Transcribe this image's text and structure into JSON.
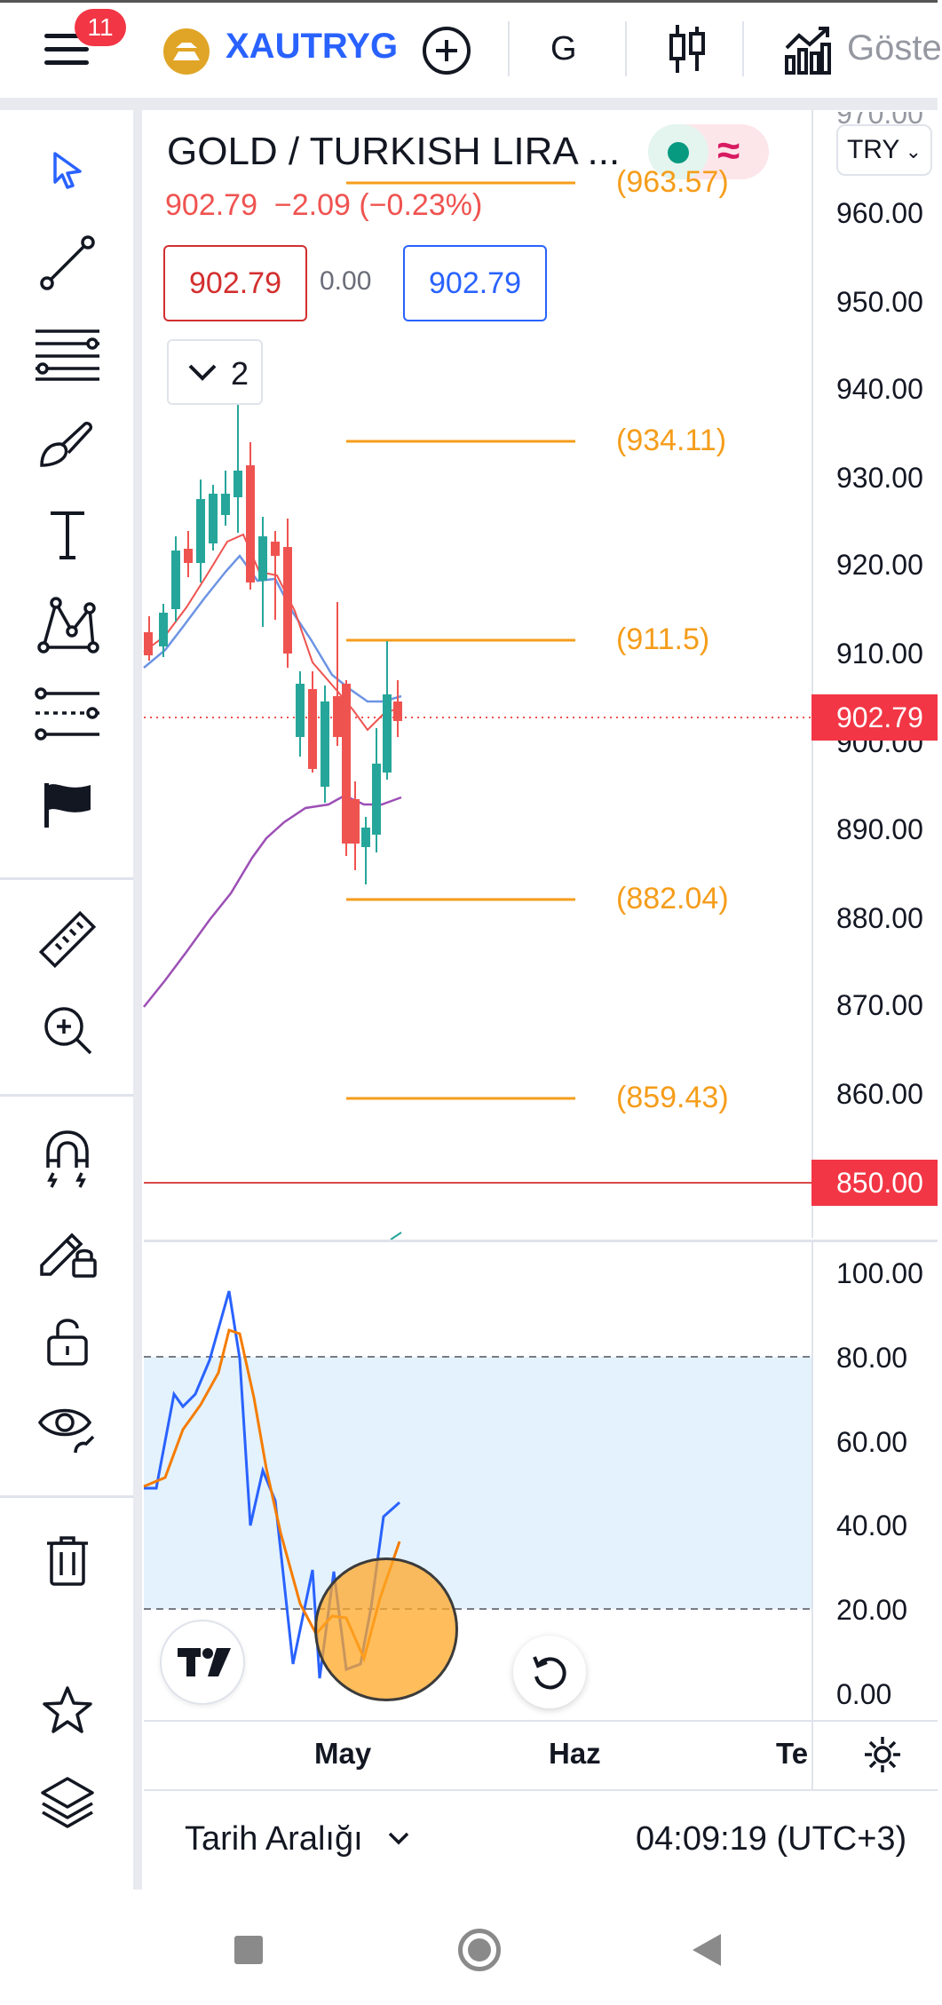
{
  "header": {
    "notification_count": "11",
    "symbol": "XAUTRYG",
    "interval": "G",
    "indicators_label": "Göste"
  },
  "legend": {
    "title": "GOLD / TURKISH LIRA ...",
    "last_price": "902.79",
    "change": "−2.09 (−0.23%)",
    "sell_price": "902.79",
    "spread": "0.00",
    "buy_price": "902.79",
    "collapsed_indicators": "2",
    "live_symbol": "≈"
  },
  "price_scale": {
    "currency": "TRY",
    "ticks": [
      "970.00",
      "960.00",
      "950.00",
      "940.00",
      "930.00",
      "920.00",
      "910.00",
      "900.00",
      "890.00",
      "880.00",
      "870.00",
      "860.00"
    ],
    "current_price_label": "902.79",
    "alert_price_label": "850.00"
  },
  "fib_levels": [
    "(963.57)",
    "(934.11)",
    "(911.5)",
    "(882.04)",
    "(859.43)"
  ],
  "oscillator_scale": {
    "ticks": [
      "100.00",
      "80.00",
      "60.00",
      "40.00",
      "20.00",
      "0.00"
    ]
  },
  "time_axis": {
    "labels": [
      "May",
      "Haz",
      "Te"
    ]
  },
  "bottom_bar": {
    "range_label": "Tarih Aralığı",
    "clock": "04:09:19 (UTC+3)"
  },
  "colors": {
    "brand_blue": "#2962ff",
    "bear_red": "#ef5350",
    "bull_green": "#26a69a",
    "fib_orange": "#f59d1b",
    "price_label_red": "#f23645",
    "oscillator_fill": "#e3f2fd"
  },
  "left_toolbar": {
    "tools": [
      "cursor-icon",
      "trend-line-icon",
      "fib-retracement-icon",
      "brush-icon",
      "text-icon",
      "pattern-icon",
      "prediction-icon",
      "flag-icon",
      "ruler-icon",
      "zoom-in-icon",
      "magnet-icon",
      "lock-drawing-icon",
      "unlock-icon",
      "eye-icon",
      "trash-icon",
      "star-icon",
      "layers-icon"
    ]
  }
}
